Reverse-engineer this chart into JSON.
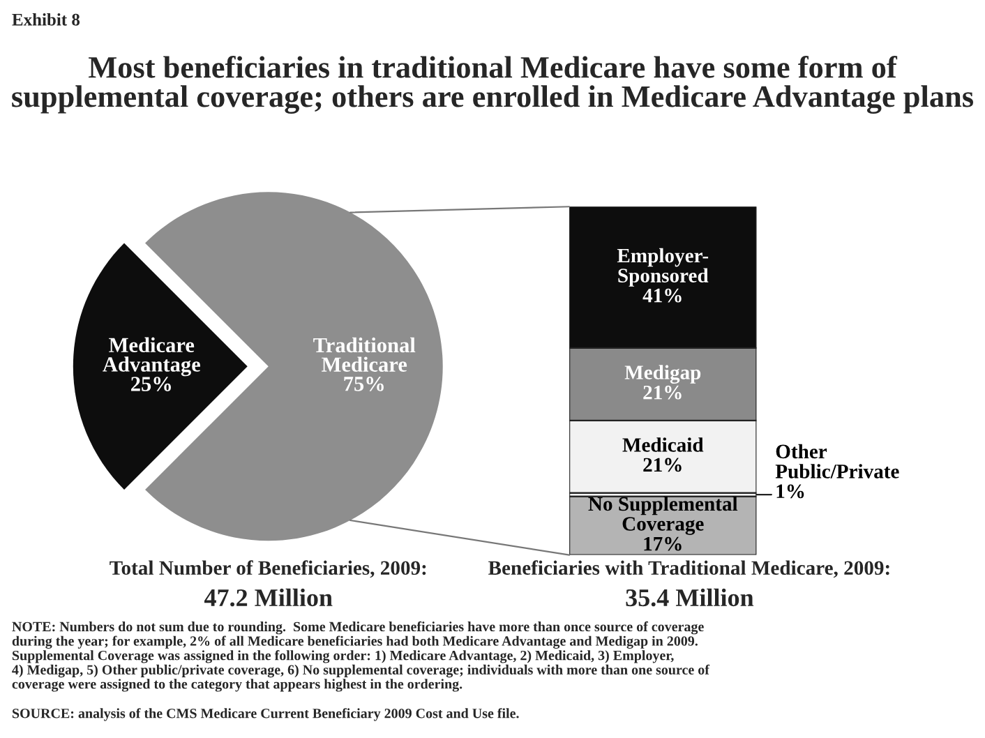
{
  "chart_data": [
    {
      "type": "pie",
      "subtitle": "Exhibit 8",
      "title": "Most beneficiaries in traditional Medicare have some form of supplemental coverage; others are enrolled in Medicare Advantage plans",
      "categories": [
        "Medicare\nAdvantage",
        "Traditional\nMedicare"
      ],
      "values": [
        25,
        75
      ],
      "value_labels": [
        "25%",
        "75%"
      ],
      "colors": [
        "#0d0d0d",
        "#8e8e8e"
      ],
      "annotations": [
        "Total Number of Beneficiaries, 2009:",
        "47.2 Million"
      ]
    },
    {
      "type": "bar",
      "stacked": true,
      "data_labels": true,
      "categories": [
        null
      ],
      "series": [
        {
          "name": "No Supplemental\nCoverage",
          "color": "#b4b4b4",
          "values": [
            17
          ],
          "value_labels": [
            "17%"
          ]
        },
        {
          "name": "Other\nPublic/Private",
          "color": "#ffffff",
          "values": [
            1
          ],
          "value_labels": [
            "1%"
          ]
        },
        {
          "name": "Medicaid",
          "color": "#f2f2f2",
          "values": [
            21
          ],
          "value_labels": [
            "21%"
          ]
        },
        {
          "name": "Medigap",
          "color": "#8a8a8a",
          "values": [
            21
          ],
          "value_labels": [
            "21%"
          ]
        },
        {
          "name": "Employer-\nSponsored",
          "color": "#0d0d0d",
          "values": [
            41
          ],
          "value_labels": [
            "41%"
          ]
        }
      ],
      "annotations": [
        "Beneficiaries with Traditional Medicare, 2009:",
        "35.4 Million",
        "NOTE: Numbers do not sum due to rounding.  Some Medicare beneficiaries have more than once source of coverage\nduring the year; for example, 2% of all Medicare beneficiaries had both Medicare Advantage and Medigap in 2009.\nSupplemental Coverage was assigned in the following order: 1) Medicare Advantage, 2) Medicaid, 3) Employer,\n4) Medigap, 5) Other public/private coverage, 6) No supplemental coverage; individuals with more than one source of\ncoverage were assigned to the category that appears highest in the ordering.",
        "SOURCE: analysis of the CMS Medicare Current Beneficiary 2009 Cost and Use file."
      ]
    }
  ]
}
